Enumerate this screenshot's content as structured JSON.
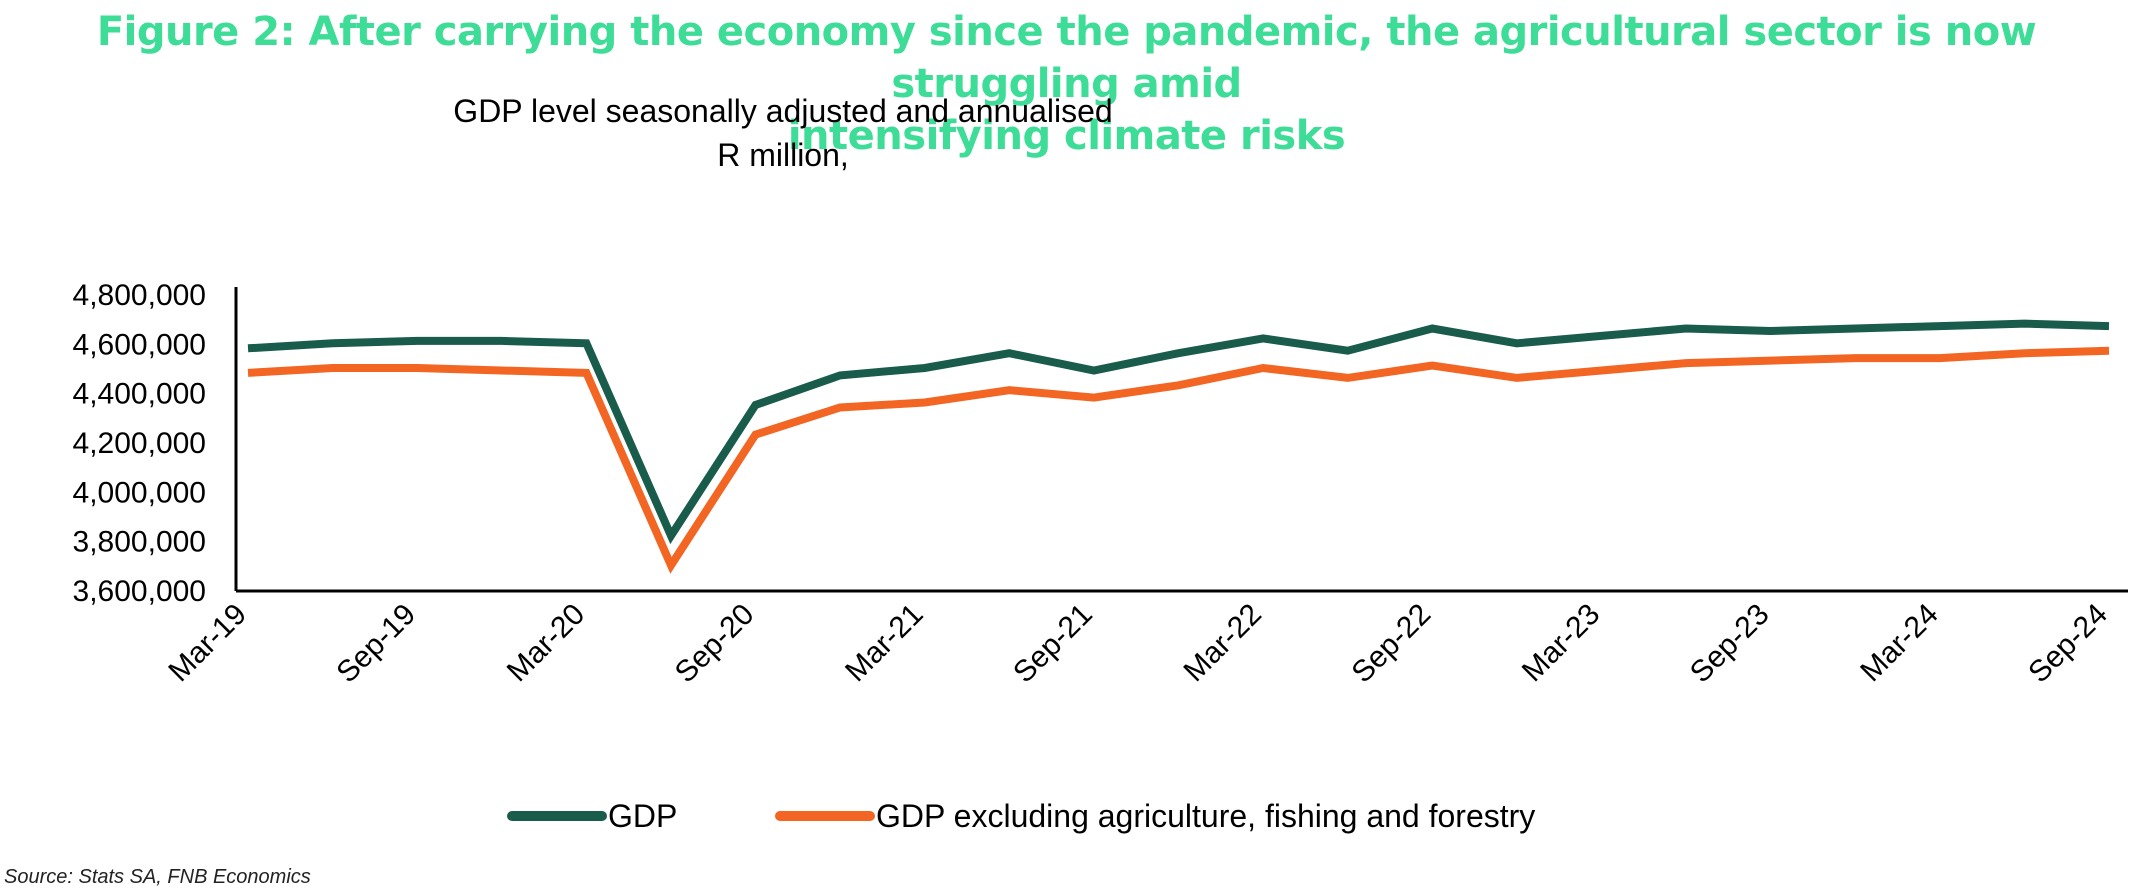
{
  "figure": {
    "title_line1": "Figure 2: After carrying the economy since the pandemic, the agricultural sector is now struggling amid",
    "title_line2": "intensifying climate risks",
    "source": "Source: Stats SA, FNB Economics"
  },
  "colors": {
    "title": "#3ddc97",
    "gdp": "#1a5c4b",
    "gdp_ex_agri": "#f26522"
  },
  "chart_data": {
    "type": "line",
    "title": "GDP level seasonally adjusted and annualised",
    "subtitle": "R million,",
    "xlabel": "",
    "ylabel": "",
    "ylim": [
      3600000,
      4800000
    ],
    "yticks": [
      3600000,
      3800000,
      4000000,
      4200000,
      4400000,
      4600000,
      4800000
    ],
    "ytick_labels": [
      "3,600,000",
      "3,800,000",
      "4,000,000",
      "4,200,000",
      "4,400,000",
      "4,600,000",
      "4,800,000"
    ],
    "x": [
      "Mar-19",
      "Jun-19",
      "Sep-19",
      "Dec-19",
      "Mar-20",
      "Jun-20",
      "Sep-20",
      "Dec-20",
      "Mar-21",
      "Jun-21",
      "Sep-21",
      "Dec-21",
      "Mar-22",
      "Jun-22",
      "Sep-22",
      "Dec-22",
      "Mar-23",
      "Jun-23",
      "Sep-23",
      "Dec-23",
      "Mar-24",
      "Jun-24",
      "Sep-24"
    ],
    "x_tick_labels": [
      "Mar-19",
      "Sep-19",
      "Mar-20",
      "Sep-20",
      "Mar-21",
      "Sep-21",
      "Mar-22",
      "Sep-22",
      "Mar-23",
      "Sep-23",
      "Mar-24",
      "Sep-24"
    ],
    "grid": false,
    "legend_position": "bottom",
    "series": [
      {
        "name": "GDP",
        "values": [
          4580000,
          4600000,
          4610000,
          4610000,
          4600000,
          3820000,
          4350000,
          4470000,
          4500000,
          4560000,
          4490000,
          4560000,
          4620000,
          4570000,
          4660000,
          4600000,
          4630000,
          4660000,
          4650000,
          4660000,
          4670000,
          4680000,
          4670000
        ]
      },
      {
        "name": "GDP excluding agriculture, fishing and forestry",
        "values": [
          4480000,
          4500000,
          4500000,
          4490000,
          4480000,
          3700000,
          4230000,
          4340000,
          4360000,
          4410000,
          4380000,
          4430000,
          4500000,
          4460000,
          4510000,
          4460000,
          4490000,
          4520000,
          4530000,
          4540000,
          4540000,
          4560000,
          4570000
        ]
      }
    ]
  }
}
